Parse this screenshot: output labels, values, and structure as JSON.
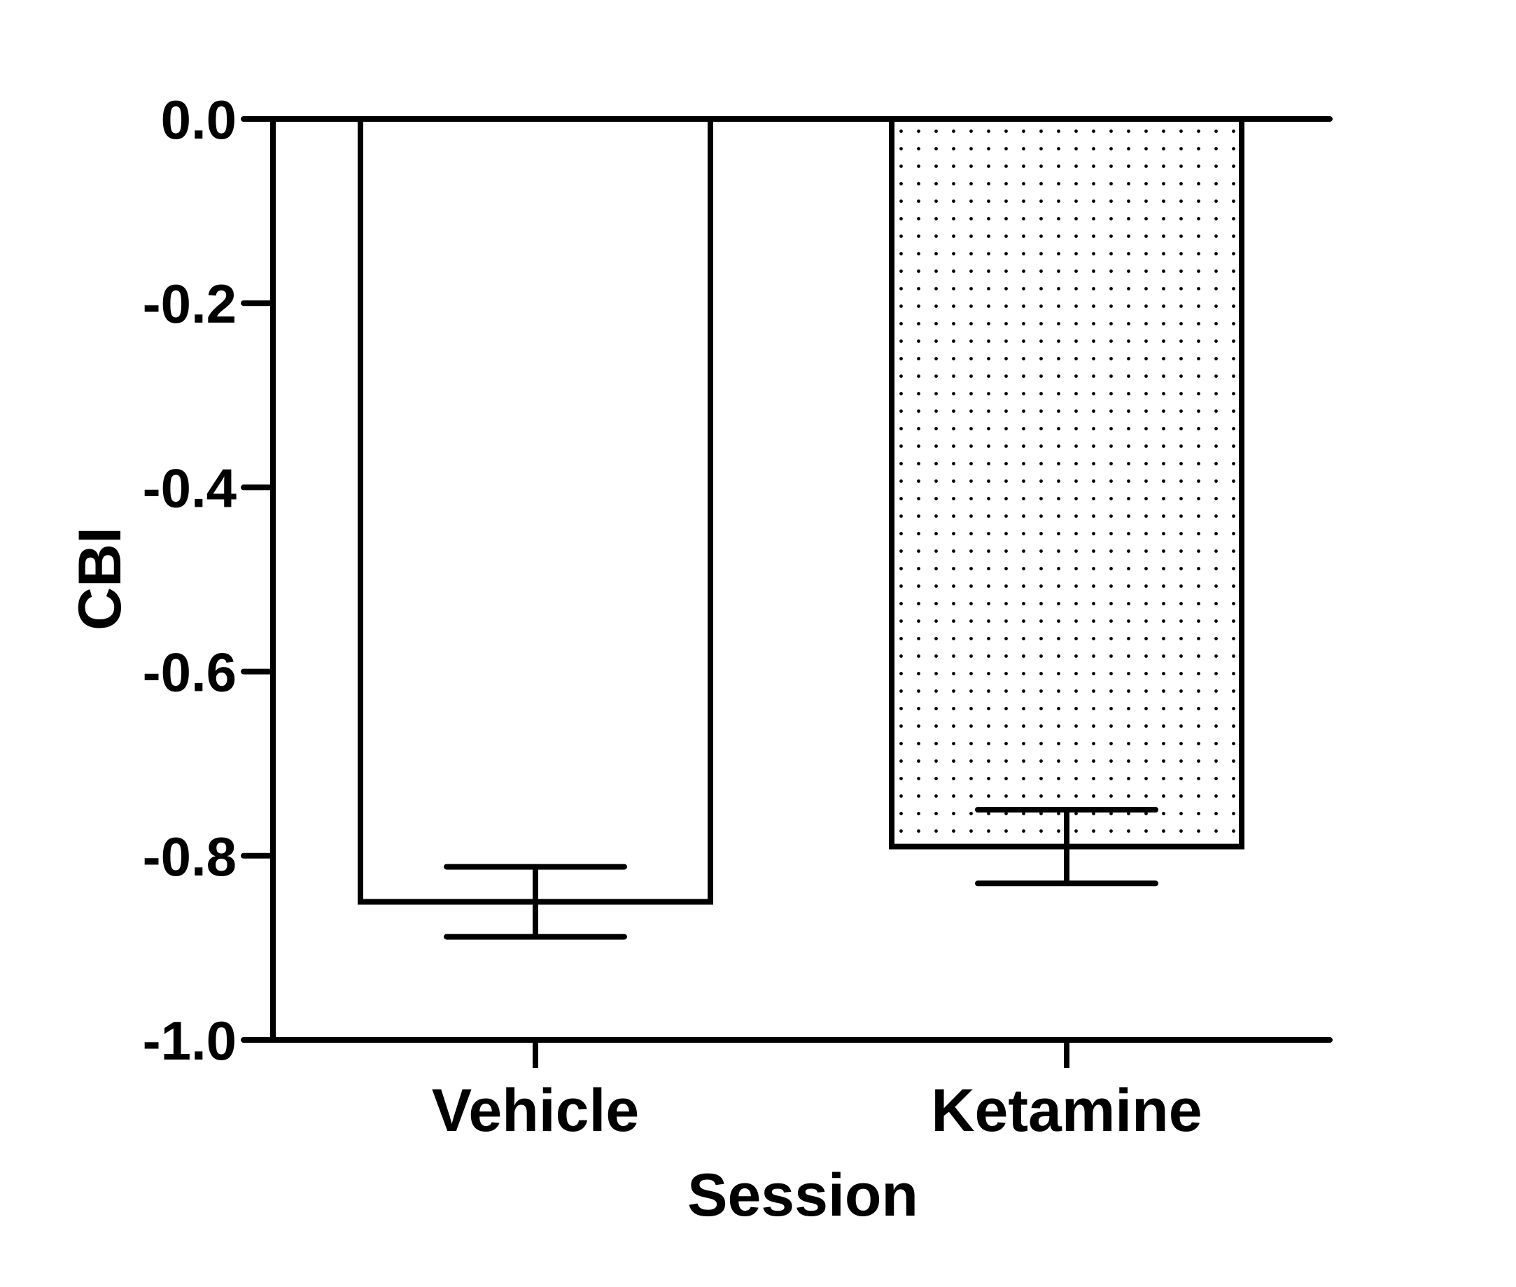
{
  "chart_data": {
    "type": "bar",
    "categories": [
      "Vehicle",
      "Ketamine"
    ],
    "series": [
      {
        "values": [
          -0.85,
          -0.79
        ],
        "error": [
          0.038,
          0.04
        ],
        "fills": [
          "plain",
          "dotted"
        ]
      }
    ],
    "title": "",
    "xlabel": "Session",
    "ylabel": "CBI",
    "ylim": [
      -1.0,
      0.0
    ],
    "yticks": [
      0.0,
      -0.2,
      -0.4,
      -0.6,
      -0.8,
      -1.0
    ],
    "ytick_labels": [
      "0.0",
      "-0.2",
      "-0.4",
      "-0.6",
      "-0.8",
      "-1.0"
    ],
    "grid": false,
    "legend": "none",
    "colors": {
      "stroke": "#000000",
      "background": "#ffffff",
      "dot": "#000000"
    }
  }
}
